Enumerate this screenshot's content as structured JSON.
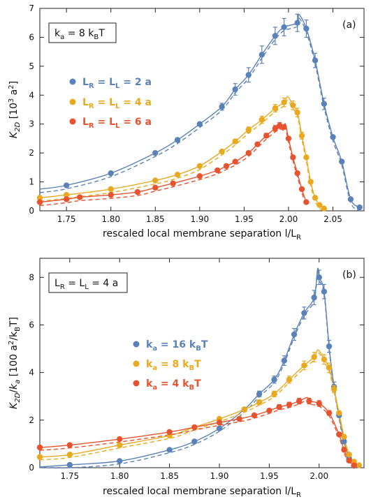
{
  "chart_data": [
    {
      "type": "line",
      "panel": "(a)",
      "annotation": "k_a = 8 k_B T",
      "xlabel": "rescaled local membrane separation l/L_R",
      "ylabel": "K_2D [10^3 a^2]",
      "xlim": [
        1.72,
        2.085
      ],
      "ylim": [
        0,
        7
      ],
      "xticks": [
        1.75,
        1.8,
        1.85,
        1.9,
        1.95,
        2.0,
        2.05
      ],
      "yticks": [
        0,
        1,
        2,
        3,
        4,
        5,
        6,
        7
      ],
      "legend_position": "left-center",
      "series": [
        {
          "name": "L_R = L_L = 2 a",
          "color": "#5b82b8",
          "x": [
            1.75,
            1.8,
            1.85,
            1.875,
            1.9,
            1.925,
            1.94,
            1.955,
            1.97,
            1.985,
            1.995,
            2.01,
            2.02,
            2.03,
            2.04,
            2.05,
            2.06,
            2.07,
            2.08
          ],
          "y": [
            0.88,
            1.3,
            2.0,
            2.45,
            3.0,
            3.6,
            4.2,
            4.7,
            5.4,
            6.05,
            6.35,
            6.5,
            6.3,
            5.2,
            3.7,
            2.55,
            1.7,
            0.4,
            0.12
          ],
          "err": [
            0,
            0,
            0,
            0,
            0,
            0.12,
            0.2,
            0.25,
            0.3,
            0.3,
            0.3,
            0.3,
            0.3,
            0.25,
            0.2,
            0,
            0,
            0,
            0
          ],
          "fit_peak": [
            2.0115,
            6.8
          ],
          "fit_start": 0.75
        },
        {
          "name": "L_R = L_L = 4 a",
          "color": "#e8a91e",
          "x": [
            1.72,
            1.75,
            1.8,
            1.85,
            1.875,
            1.9,
            1.925,
            1.94,
            1.955,
            1.97,
            1.985,
            1.995,
            2.005,
            2.01,
            2.015,
            2.02,
            2.025,
            2.03,
            2.035,
            2.04
          ],
          "y": [
            0.45,
            0.55,
            0.75,
            1.05,
            1.25,
            1.55,
            2.05,
            2.4,
            2.8,
            3.15,
            3.55,
            3.75,
            3.65,
            3.4,
            2.6,
            1.85,
            1.0,
            0.45,
            0.2,
            0.08
          ],
          "err": [
            0,
            0,
            0,
            0,
            0,
            0,
            0,
            0.08,
            0.1,
            0.12,
            0.13,
            0.15,
            0.15,
            0.15,
            0.12,
            0,
            0,
            0,
            0,
            0
          ],
          "fit_peak": [
            1.999,
            3.95
          ],
          "fit_start": 0.3
        },
        {
          "name": "L_R = L_L = 6 a",
          "color": "#e8532f",
          "x": [
            1.72,
            1.75,
            1.765,
            1.8,
            1.83,
            1.85,
            1.87,
            1.9,
            1.92,
            1.93,
            1.94,
            1.955,
            1.965,
            1.975,
            1.985,
            1.99,
            1.995,
            2.0,
            2.005,
            2.01,
            2.015,
            2.02
          ],
          "y": [
            0.3,
            0.4,
            0.47,
            0.55,
            0.65,
            0.8,
            0.95,
            1.2,
            1.4,
            1.55,
            1.7,
            2.0,
            2.3,
            2.6,
            2.85,
            2.95,
            2.9,
            2.5,
            1.85,
            1.3,
            0.75,
            0.3
          ],
          "err": [
            0,
            0,
            0,
            0,
            0,
            0,
            0,
            0,
            0,
            0,
            0,
            0,
            0,
            0.08,
            0.1,
            0.1,
            0,
            0,
            0,
            0,
            0,
            0
          ],
          "fit_peak": [
            1.9965,
            3.0
          ],
          "fit_start": 0.3
        }
      ]
    },
    {
      "type": "line",
      "panel": "(b)",
      "annotation": "L_R = L_L = 4 a",
      "xlabel": "rescaled local membrane separation l/L_R",
      "ylabel": "K_2D/k_a [100 a^2/k_B T]",
      "xlim": [
        1.72,
        2.045
      ],
      "ylim": [
        0,
        8.8
      ],
      "xticks": [
        1.75,
        1.8,
        1.85,
        1.9,
        1.95,
        2.0
      ],
      "yticks": [
        0,
        2,
        4,
        6,
        8
      ],
      "legend_position": "right-center",
      "series": [
        {
          "name": "k_a = 16 k_B T",
          "color": "#5b82b8",
          "x": [
            1.75,
            1.8,
            1.85,
            1.875,
            1.9,
            1.925,
            1.94,
            1.955,
            1.965,
            1.975,
            1.985,
            1.995,
            2.0,
            2.005,
            2.01,
            2.015,
            2.02,
            2.025,
            2.03,
            2.035
          ],
          "y": [
            0.12,
            0.28,
            0.75,
            1.1,
            1.65,
            2.45,
            3.1,
            3.7,
            4.5,
            5.6,
            6.5,
            7.15,
            8.0,
            7.4,
            5.1,
            3.4,
            2.2,
            1.1,
            0.4,
            0.08
          ],
          "err": [
            0,
            0,
            0,
            0,
            0,
            0,
            0.12,
            0.15,
            0.2,
            0.25,
            0.25,
            0.3,
            0.3,
            0.3,
            0.25,
            0.2,
            0,
            0,
            0,
            0
          ],
          "fit_peak": [
            1.9985,
            8.35
          ],
          "fit_start": 0.03
        },
        {
          "name": "k_a = 8 k_B T",
          "color": "#e8a91e",
          "x": [
            1.72,
            1.75,
            1.8,
            1.85,
            1.875,
            1.9,
            1.925,
            1.94,
            1.955,
            1.97,
            1.985,
            1.995,
            2.005,
            2.01,
            2.015,
            2.02,
            2.025,
            2.03,
            2.035,
            2.04
          ],
          "y": [
            0.45,
            0.55,
            0.95,
            1.35,
            1.7,
            2.05,
            2.45,
            2.75,
            3.1,
            3.7,
            4.3,
            4.65,
            4.55,
            4.2,
            3.3,
            2.3,
            1.3,
            0.55,
            0.25,
            0.1
          ],
          "err": [
            0,
            0,
            0,
            0,
            0,
            0,
            0,
            0.1,
            0.12,
            0.15,
            0.18,
            0.2,
            0.2,
            0.2,
            0.15,
            0,
            0,
            0,
            0,
            0
          ],
          "fit_peak": [
            1.999,
            4.95
          ],
          "fit_start": 0.3
        },
        {
          "name": "k_a = 4 k_B T",
          "color": "#e8532f",
          "x": [
            1.72,
            1.75,
            1.8,
            1.85,
            1.875,
            1.9,
            1.92,
            1.935,
            1.95,
            1.96,
            1.97,
            1.98,
            1.99,
            2.0,
            2.01,
            2.02,
            2.025,
            2.03,
            2.035
          ],
          "y": [
            0.85,
            0.95,
            1.2,
            1.5,
            1.7,
            1.9,
            2.05,
            2.2,
            2.4,
            2.55,
            2.65,
            2.8,
            2.8,
            2.7,
            2.3,
            1.4,
            0.75,
            0.3,
            0.1
          ],
          "err": [
            0,
            0,
            0,
            0,
            0,
            0,
            0,
            0,
            0.08,
            0.1,
            0.1,
            0.12,
            0.12,
            0.12,
            0.1,
            0,
            0,
            0,
            0
          ],
          "fit_peak": [
            1.988,
            2.95
          ],
          "fit_start": 0.75
        }
      ]
    }
  ],
  "panels": [
    {
      "tag": "(a)",
      "box_text": "kₐ = 8 kʙT",
      "xlabel": "rescaled local membrane separation l/L",
      "xlabel_sub": "R",
      "ylabel": "K",
      "ylabel_sub": "2D",
      "ylabel_rest": "  [10³ a²]",
      "legend": [
        "L",
        "R",
        " = L",
        "L",
        " = 2 a",
        "L",
        "R",
        " = L",
        "L",
        " = 4 a",
        "L",
        "R",
        " = L",
        "L",
        " = 6 a"
      ]
    },
    {
      "tag": "(b)",
      "box_text": "L",
      "xlabel": "rescaled local membrane separation l/L",
      "xlabel_sub": "R",
      "ylabel": "K",
      "ylabel_sub": "2D",
      "ylabel_rest": "/k",
      "ylabel_sub2": "a",
      "ylabel_rest2": " [100 a²/k",
      "ylabel_sub3": "B",
      "ylabel_rest3": "T]"
    }
  ]
}
